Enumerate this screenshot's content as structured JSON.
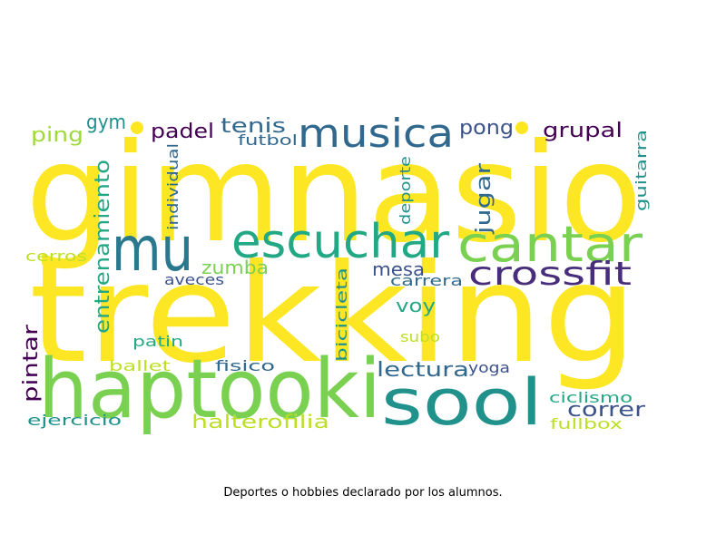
{
  "caption": "Deportes o hobbies declarado por los alumnos.",
  "palette": {
    "yellow": "#fde725",
    "light_green": "#7ad151",
    "green": "#22a884",
    "teal": "#21918c",
    "blue": "#31688e",
    "dark_blue": "#3b528b",
    "purple": "#440154",
    "dark_purple": "#472d7b",
    "lime": "#bddf26"
  },
  "words": [
    {
      "text": "gimnasio",
      "color": "#fde725",
      "rotate": false
    },
    {
      "text": "trekking",
      "color": "#fde725",
      "rotate": false
    },
    {
      "text": "haptooki",
      "color": "#7ad151",
      "rotate": false
    },
    {
      "text": "sool",
      "color": "#21918c",
      "rotate": false
    },
    {
      "text": "musica",
      "color": "#31688e",
      "rotate": false
    },
    {
      "text": "mu",
      "color": "#2a788e",
      "rotate": false
    },
    {
      "text": "escuchar",
      "color": "#22a884",
      "rotate": false
    },
    {
      "text": "cantar",
      "color": "#7ad151",
      "rotate": false
    },
    {
      "text": "crossfit",
      "color": "#472d7b",
      "rotate": false
    },
    {
      "text": "gym",
      "color": "#21918c",
      "rotate": false
    },
    {
      "text": "ping",
      "color": "#a0da39",
      "rotate": false
    },
    {
      "text": "padel",
      "color": "#440154",
      "rotate": false
    },
    {
      "text": "tenis",
      "color": "#31688e",
      "rotate": false
    },
    {
      "text": "futbol",
      "color": "#31688e",
      "rotate": false
    },
    {
      "text": "pong",
      "color": "#3b528b",
      "rotate": false
    },
    {
      "text": "grupal",
      "color": "#440154",
      "rotate": false
    },
    {
      "text": "guitarra",
      "color": "#21918c",
      "rotate": true
    },
    {
      "text": "entrenamiento",
      "color": "#22a884",
      "rotate": true
    },
    {
      "text": "individual",
      "color": "#31688e",
      "rotate": true
    },
    {
      "text": "deporte",
      "color": "#21918c",
      "rotate": true
    },
    {
      "text": "jugar",
      "color": "#31688e",
      "rotate": true
    },
    {
      "text": "cerros",
      "color": "#bddf26",
      "rotate": false
    },
    {
      "text": "zumba",
      "color": "#7ad151",
      "rotate": false
    },
    {
      "text": "aveces",
      "color": "#3b528b",
      "rotate": false
    },
    {
      "text": "mesa",
      "color": "#3b528b",
      "rotate": false
    },
    {
      "text": "carrera",
      "color": "#31688e",
      "rotate": false
    },
    {
      "text": "voy",
      "color": "#22a884",
      "rotate": false
    },
    {
      "text": "patin",
      "color": "#22a884",
      "rotate": false
    },
    {
      "text": "bicicleta",
      "color": "#21918c",
      "rotate": true
    },
    {
      "text": "subo",
      "color": "#bddf26",
      "rotate": false
    },
    {
      "text": "pintar",
      "color": "#440154",
      "rotate": true
    },
    {
      "text": "ballet",
      "color": "#bddf26",
      "rotate": false
    },
    {
      "text": "fisico",
      "color": "#31688e",
      "rotate": false
    },
    {
      "text": "lectura",
      "color": "#31688e",
      "rotate": false
    },
    {
      "text": "yoga",
      "color": "#3b528b",
      "rotate": false
    },
    {
      "text": "correr",
      "color": "#3b528b",
      "rotate": false
    },
    {
      "text": "ciclismo",
      "color": "#22a884",
      "rotate": false
    },
    {
      "text": "ejercicio",
      "color": "#21918c",
      "rotate": false
    },
    {
      "text": "halterofilia",
      "color": "#bddf26",
      "rotate": false
    },
    {
      "text": "fullbox",
      "color": "#bddf26",
      "rotate": false
    }
  ]
}
